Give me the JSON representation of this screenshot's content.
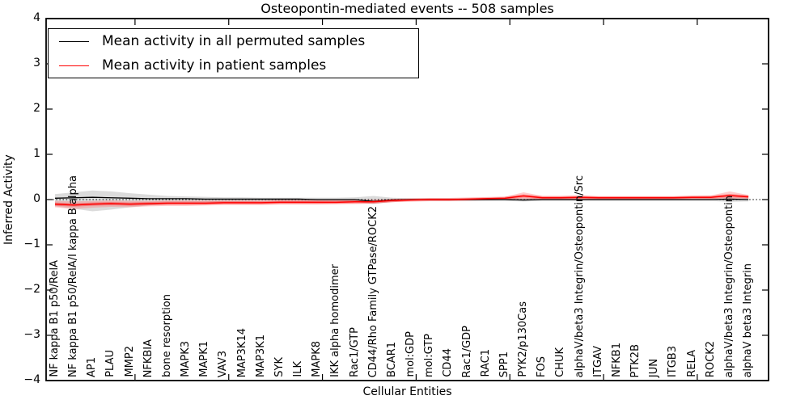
{
  "title": "Osteopontin-mediated events -- 508 samples",
  "legend": {
    "items": [
      {
        "label": "Mean activity in all permuted samples",
        "color": "#000000"
      },
      {
        "label": "Mean activity in patient samples",
        "color": "#ff0000"
      }
    ]
  },
  "chart_data": {
    "type": "line",
    "title": "Osteopontin-mediated events -- 508 samples",
    "xlabel": "Cellular Entities",
    "ylabel": "Inferred Activity",
    "ylim": [
      -4,
      4
    ],
    "y_ticks": [
      4,
      3,
      2,
      1,
      0,
      -1,
      -2,
      -3,
      -4
    ],
    "grid": false,
    "zero_reference_line": "dotted",
    "legend_position": "upper left",
    "categories": [
      "NF kappa B1 p50/RelA",
      "NF kappa B1 p50/RelA/I kappa B alpha",
      "AP1",
      "PLAU",
      "MMP2",
      "NFKBIA",
      "bone resorption",
      "MAPK3",
      "MAPK1",
      "VAV3",
      "MAP3K14",
      "MAP3K1",
      "SYK",
      "ILK",
      "MAPK8",
      "IKK alpha homodimer",
      "Rac1/GTP",
      "CD44/Rho Family GTPase/ROCK2",
      "BCAR1",
      "mol:GDP",
      "mol:GTP",
      "CD44",
      "Rac1/GDP",
      "RAC1",
      "SPP1",
      "PYK2/p130Cas",
      "FOS",
      "CHUK",
      "alphaV/beta3 Integrin/Osteopontin/Src",
      "ITGAV",
      "NFKB1",
      "PTK2B",
      "JUN",
      "ITGB3",
      "RELA",
      "ROCK2",
      "alphaV/beta3 Integrin/Osteopontin",
      "alphaV beta3 Integrin"
    ],
    "series": [
      {
        "name": "Mean activity in all permuted samples",
        "color": "#000000",
        "band_color": "#999999",
        "values": [
          0.03,
          0.04,
          0.05,
          0.04,
          0.03,
          0.02,
          0.02,
          0.02,
          0.01,
          0.01,
          0.01,
          0.01,
          0.01,
          0.01,
          0.0,
          0.0,
          0.0,
          -0.04,
          -0.01,
          0.0,
          0.0,
          0.0,
          0.0,
          0.0,
          0.0,
          -0.01,
          0.0,
          0.0,
          0.0,
          0.0,
          0.0,
          0.0,
          0.0,
          0.0,
          0.0,
          0.0,
          0.01,
          0.0
        ],
        "band_upper": [
          0.12,
          0.16,
          0.2,
          0.18,
          0.14,
          0.11,
          0.08,
          0.07,
          0.06,
          0.05,
          0.05,
          0.04,
          0.04,
          0.04,
          0.04,
          0.04,
          0.05,
          0.08,
          0.04,
          0.03,
          0.03,
          0.03,
          0.03,
          0.03,
          0.03,
          0.04,
          0.03,
          0.03,
          0.03,
          0.03,
          0.03,
          0.03,
          0.03,
          0.03,
          0.03,
          0.03,
          0.05,
          0.04
        ],
        "band_lower": [
          -0.15,
          -0.2,
          -0.26,
          -0.22,
          -0.17,
          -0.13,
          -0.1,
          -0.08,
          -0.07,
          -0.06,
          -0.06,
          -0.05,
          -0.05,
          -0.05,
          -0.04,
          -0.04,
          -0.05,
          -0.1,
          -0.05,
          -0.03,
          -0.03,
          -0.03,
          -0.03,
          -0.03,
          -0.03,
          -0.04,
          -0.03,
          -0.03,
          -0.03,
          -0.03,
          -0.03,
          -0.03,
          -0.03,
          -0.03,
          -0.03,
          -0.03,
          -0.05,
          -0.04
        ]
      },
      {
        "name": "Mean activity in patient samples",
        "color": "#ff0000",
        "band_color": "#ff7070",
        "values": [
          -0.1,
          -0.12,
          -0.1,
          -0.09,
          -0.1,
          -0.09,
          -0.08,
          -0.08,
          -0.08,
          -0.07,
          -0.07,
          -0.07,
          -0.06,
          -0.06,
          -0.06,
          -0.06,
          -0.05,
          -0.05,
          -0.02,
          -0.01,
          0.0,
          0.0,
          0.01,
          0.02,
          0.03,
          0.08,
          0.04,
          0.04,
          0.05,
          0.04,
          0.04,
          0.04,
          0.04,
          0.04,
          0.05,
          0.05,
          0.09,
          0.06
        ],
        "band_upper": [
          -0.03,
          -0.04,
          -0.03,
          -0.02,
          -0.03,
          -0.03,
          -0.02,
          -0.02,
          -0.02,
          -0.02,
          -0.02,
          -0.02,
          -0.01,
          -0.01,
          -0.01,
          -0.01,
          0.0,
          0.0,
          0.01,
          0.01,
          0.02,
          0.02,
          0.03,
          0.04,
          0.06,
          0.16,
          0.08,
          0.08,
          0.09,
          0.07,
          0.07,
          0.07,
          0.07,
          0.07,
          0.08,
          0.09,
          0.18,
          0.1
        ],
        "band_lower": [
          -0.17,
          -0.21,
          -0.18,
          -0.16,
          -0.17,
          -0.15,
          -0.14,
          -0.14,
          -0.13,
          -0.12,
          -0.12,
          -0.12,
          -0.11,
          -0.11,
          -0.11,
          -0.1,
          -0.1,
          -0.09,
          -0.06,
          -0.03,
          -0.02,
          -0.02,
          -0.01,
          0.0,
          0.0,
          0.01,
          0.0,
          0.0,
          0.01,
          0.01,
          0.01,
          0.01,
          0.01,
          0.01,
          0.02,
          0.02,
          0.02,
          0.02
        ]
      }
    ],
    "x_major_tick_indices": [
      4.27,
      9.27,
      14.27,
      19.27,
      24.27,
      29.27,
      34.27
    ]
  }
}
